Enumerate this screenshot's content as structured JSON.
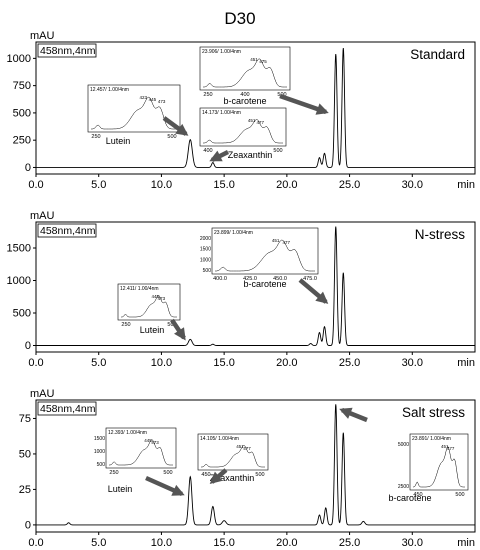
{
  "title": "D30",
  "chart_data": [
    {
      "type": "line",
      "unit": "mAU",
      "detector": "458nm,4nm",
      "xlabel": "min",
      "xlim": [
        0,
        35
      ],
      "xticks": [
        "0.0",
        "5.0",
        "10.0",
        "15.0",
        "20.0",
        "25.0",
        "30.0"
      ],
      "ylim": [
        -60,
        1150
      ],
      "yticks": [
        0,
        250,
        500,
        750,
        1000
      ],
      "label": "Standard",
      "peaks": [
        {
          "rt": 12.3,
          "height": 255,
          "w": 0.16
        },
        {
          "rt": 14.1,
          "height": 45,
          "w": 0.1
        },
        {
          "rt": 22.6,
          "height": 90,
          "w": 0.1
        },
        {
          "rt": 23.0,
          "height": 130,
          "w": 0.1
        },
        {
          "rt": 23.9,
          "height": 1040,
          "w": 0.1
        },
        {
          "rt": 24.5,
          "height": 1095,
          "w": 0.1
        }
      ],
      "insets": [
        {
          "name": "Lutein",
          "header": "12.457/ 1.00/4nm",
          "xticks": [
            "250",
            "500"
          ],
          "peak_labels": [
            "423",
            "445",
            "473"
          ]
        },
        {
          "name": "b-carotene",
          "header": "23.906/ 1.00/4nm",
          "xticks": [
            "250",
            "400",
            "500"
          ],
          "peak_labels": [
            "451",
            "475"
          ]
        },
        {
          "name": "Zeaxanthin",
          "header": "14.173/ 1.00/4nm",
          "xticks": [
            "400",
            "500"
          ],
          "peak_labels": [
            "451",
            "477"
          ]
        }
      ]
    },
    {
      "type": "line",
      "unit": "mAU",
      "detector": "458nm,4nm",
      "xlabel": "min",
      "xlim": [
        0,
        35
      ],
      "xticks": [
        "0.0",
        "5.0",
        "10.0",
        "15.0",
        "20.0",
        "25.0",
        "30.0"
      ],
      "ylim": [
        -100,
        1900
      ],
      "yticks": [
        0,
        500,
        1000,
        1500
      ],
      "label": "N-stress",
      "peaks": [
        {
          "rt": 12.3,
          "height": 95,
          "w": 0.14
        },
        {
          "rt": 14.1,
          "height": 20,
          "w": 0.1
        },
        {
          "rt": 21.9,
          "height": 30,
          "w": 0.1
        },
        {
          "rt": 22.6,
          "height": 200,
          "w": 0.1
        },
        {
          "rt": 23.0,
          "height": 290,
          "w": 0.1
        },
        {
          "rt": 23.9,
          "height": 1830,
          "w": 0.1
        },
        {
          "rt": 24.5,
          "height": 1120,
          "w": 0.1
        }
      ],
      "insets": [
        {
          "name": "b-carotene",
          "header": "23.899/ 1.00/4nm",
          "xticks": [
            "400.0",
            "425.0",
            "450.0",
            "475.0"
          ],
          "yticks": [
            "2000",
            "1500",
            "1000",
            "500"
          ],
          "peak_labels": [
            "451",
            "477"
          ]
        },
        {
          "name": "Lutein",
          "header": "12.411/ 1.00/4nm",
          "xticks": [
            "250",
            "500"
          ],
          "peak_labels": [
            "445",
            "473"
          ]
        }
      ]
    },
    {
      "type": "line",
      "unit": "mAU",
      "detector": "458nm,4nm",
      "xlabel": "min",
      "xlim": [
        0,
        35
      ],
      "xticks": [
        "0.0",
        "5.0",
        "10.0",
        "15.0",
        "20.0",
        "25.0",
        "30.0"
      ],
      "ylim": [
        -5,
        88
      ],
      "yticks": [
        0,
        25,
        50,
        75
      ],
      "label": "Salt stress",
      "peaks": [
        {
          "rt": 2.6,
          "height": 1.5,
          "w": 0.1
        },
        {
          "rt": 12.3,
          "height": 34,
          "w": 0.13
        },
        {
          "rt": 14.1,
          "height": 13,
          "w": 0.12
        },
        {
          "rt": 15.0,
          "height": 3,
          "w": 0.15
        },
        {
          "rt": 22.6,
          "height": 7,
          "w": 0.1
        },
        {
          "rt": 23.1,
          "height": 12,
          "w": 0.1
        },
        {
          "rt": 23.9,
          "height": 85,
          "w": 0.1
        },
        {
          "rt": 24.5,
          "height": 65,
          "w": 0.1
        },
        {
          "rt": 26.1,
          "height": 2.5,
          "w": 0.12
        }
      ],
      "insets": [
        {
          "name": "Lutein",
          "header": "12.393/ 1.00/4nm",
          "xticks": [
            "250",
            "500"
          ],
          "yticks": [
            "1500",
            "1000",
            "500"
          ],
          "peak_labels": [
            "445",
            "473"
          ]
        },
        {
          "name": "Zeaxanthin",
          "header": "14.105/ 1.00/4nm",
          "xticks": [
            "450",
            "500"
          ],
          "peak_labels": [
            "451",
            "477"
          ]
        },
        {
          "name": "b-carotene",
          "header": "23.891/ 1.00/4nm",
          "xticks": [
            "450",
            "500"
          ],
          "yticks": [
            "5000",
            "2500"
          ],
          "peak_labels": [
            "451",
            "477"
          ]
        }
      ]
    }
  ]
}
